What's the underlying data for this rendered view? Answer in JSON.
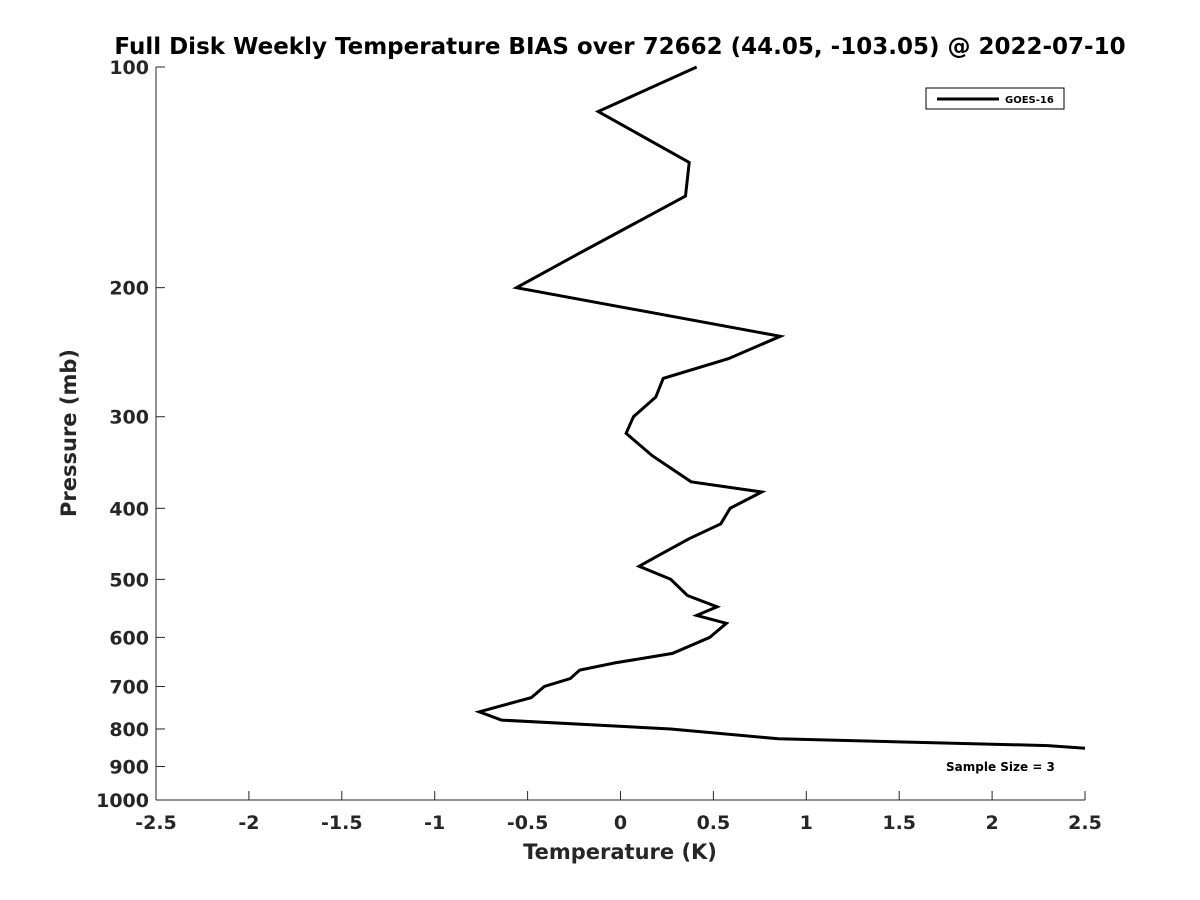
{
  "chart_data": {
    "type": "line",
    "title": "Full Disk Weekly Temperature BIAS over 72662 (44.05, -103.05) @ 2022-07-10",
    "xlabel": "Temperature (K)",
    "ylabel": "Pressure (mb)",
    "xlim": [
      -2.5,
      2.5
    ],
    "ylim": [
      1000,
      100
    ],
    "y_scale": "log",
    "y_reversed": true,
    "x_ticks": [
      -2.5,
      -2,
      -1.5,
      -1,
      -0.5,
      0,
      0.5,
      1,
      1.5,
      2,
      2.5
    ],
    "x_tick_labels": [
      "-2.5",
      "-2",
      "-1.5",
      "-1",
      "-0.5",
      "0",
      "0.5",
      "1",
      "1.5",
      "2",
      "2.5"
    ],
    "y_ticks": [
      100,
      200,
      300,
      400,
      500,
      600,
      700,
      800,
      900,
      1000
    ],
    "y_tick_labels": [
      "100",
      "200",
      "300",
      "400",
      "500",
      "600",
      "700",
      "800",
      "900",
      "1000"
    ],
    "grid": false,
    "legend_position": "top-right",
    "series": [
      {
        "name": "GOES-16",
        "color": "#000000",
        "x": [
          0.41,
          -0.12,
          0.37,
          0.35,
          -0.23,
          -0.56,
          0.86,
          0.58,
          0.23,
          0.19,
          0.07,
          0.03,
          0.17,
          0.38,
          0.76,
          0.59,
          0.54,
          0.37,
          0.19,
          0.1,
          0.27,
          0.36,
          0.52,
          0.41,
          0.57,
          0.48,
          0.28,
          -0.03,
          -0.22,
          -0.27,
          -0.41,
          -0.48,
          -0.76,
          -0.64,
          0.27,
          0.85,
          2.3,
          2.5
        ],
        "y": [
          100,
          115,
          135,
          150,
          180,
          200,
          233,
          250,
          266,
          282,
          300,
          316,
          339,
          368,
          380,
          400,
          420,
          440,
          466,
          480,
          500,
          526,
          545,
          560,
          574,
          600,
          631,
          650,
          665,
          683,
          700,
          725,
          758,
          778,
          800,
          825,
          843,
          850
        ]
      }
    ],
    "annotation": "Sample Size = 3"
  }
}
